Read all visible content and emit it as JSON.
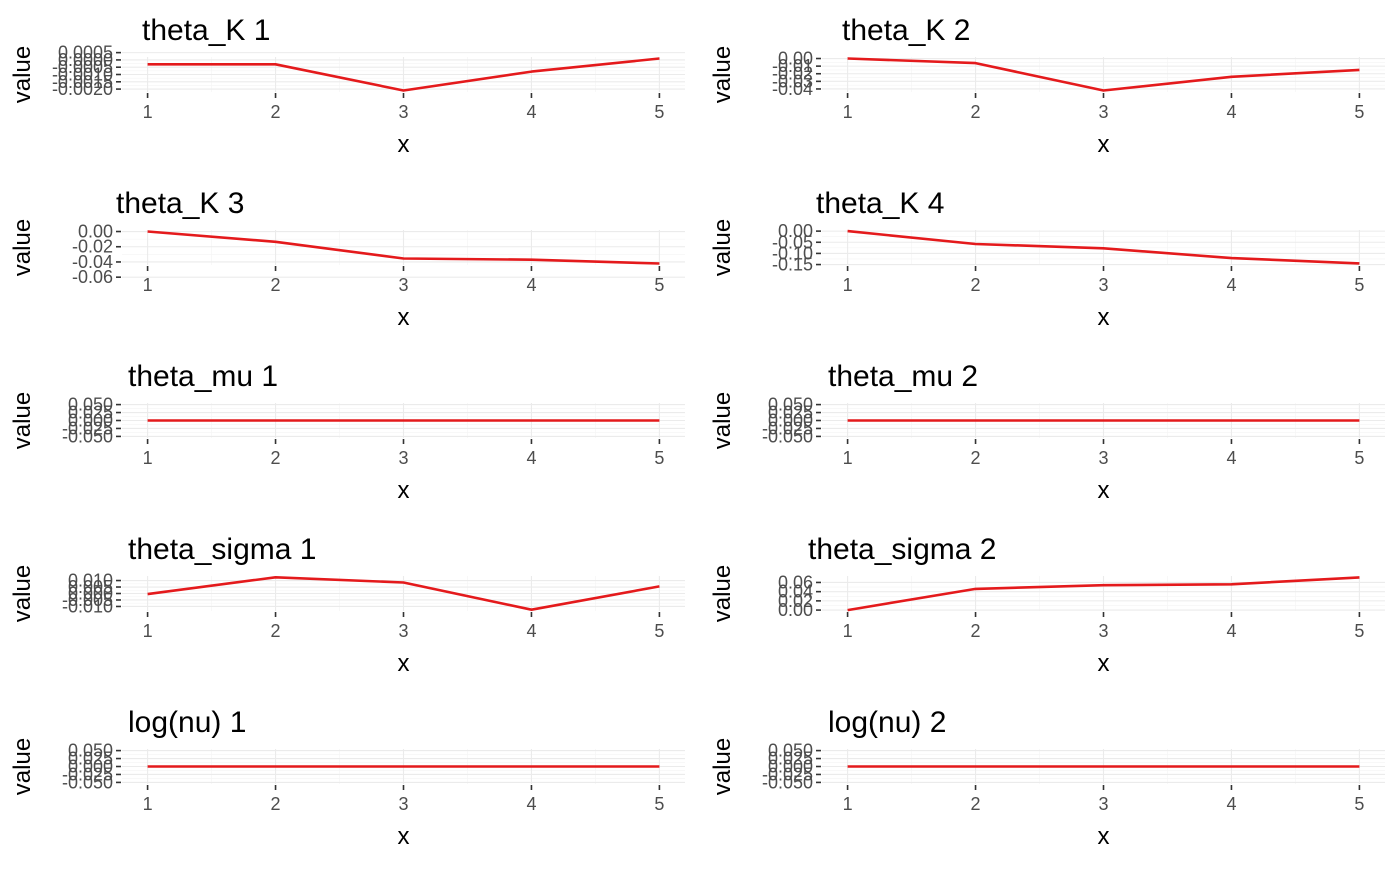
{
  "line_color": "#e41a1c",
  "chart_data": [
    {
      "type": "line",
      "title": "theta_K 1",
      "xlabel": "x",
      "ylabel": "value",
      "x": [
        1,
        2,
        3,
        4,
        5
      ],
      "values": [
        -0.0003,
        -0.0003,
        -0.0021,
        -0.0008,
        0.0001
      ],
      "ylim": [
        -0.0022,
        0.0002
      ],
      "yticks": [
        0.0005,
        0.0,
        -0.0005,
        -0.001,
        -0.0015,
        -0.002
      ],
      "ytick_labels": [
        "0.0005",
        "0.0000",
        "-0.0005",
        "-0.0010",
        "-0.0015",
        "-0.0020"
      ]
    },
    {
      "type": "line",
      "title": "theta_K 2",
      "xlabel": "x",
      "ylabel": "value",
      "x": [
        1,
        2,
        3,
        4,
        5
      ],
      "values": [
        0.0,
        -0.006,
        -0.042,
        -0.024,
        -0.015
      ],
      "ylim": [
        -0.044,
        0.002
      ],
      "yticks": [
        0.0,
        -0.01,
        -0.02,
        -0.03,
        -0.04
      ],
      "ytick_labels": [
        "0.00",
        "-0.01",
        "-0.02",
        "-0.03",
        "-0.04"
      ]
    },
    {
      "type": "line",
      "title": "theta_K 3",
      "xlabel": "x",
      "ylabel": "value",
      "x": [
        1,
        2,
        3,
        4,
        5
      ],
      "values": [
        0.0,
        -0.0135,
        -0.0355,
        -0.037,
        -0.042
      ],
      "ylim": [
        -0.044,
        0.002
      ],
      "yticks": [
        0.0,
        -0.02,
        -0.04,
        -0.06
      ],
      "ytick_labels": [
        "0.00",
        "-0.02",
        "-0.04",
        "-0.06"
      ]
    },
    {
      "type": "line",
      "title": "theta_K 4",
      "xlabel": "x",
      "ylabel": "value",
      "x": [
        1,
        2,
        3,
        4,
        5
      ],
      "values": [
        0.0,
        -0.058,
        -0.077,
        -0.121,
        -0.145
      ],
      "ylim": [
        -0.152,
        0.005
      ],
      "yticks": [
        0.0,
        -0.05,
        -0.1,
        -0.15
      ],
      "ytick_labels": [
        "0.00",
        "-0.05",
        "-0.10",
        "-0.15"
      ]
    },
    {
      "type": "line",
      "title": "theta_mu 1",
      "xlabel": "x",
      "ylabel": "value",
      "x": [
        1,
        2,
        3,
        4,
        5
      ],
      "values": [
        0,
        0,
        0,
        0,
        0
      ],
      "ylim": [
        -0.055,
        0.055
      ],
      "yticks": [
        0.05,
        0.025,
        0.0,
        -0.025,
        -0.05
      ],
      "ytick_labels": [
        "0.050",
        "0.025",
        "0.000",
        "-0.025",
        "-0.050"
      ]
    },
    {
      "type": "line",
      "title": "theta_mu 2",
      "xlabel": "x",
      "ylabel": "value",
      "x": [
        1,
        2,
        3,
        4,
        5
      ],
      "values": [
        0,
        0,
        0,
        0,
        0
      ],
      "ylim": [
        -0.055,
        0.055
      ],
      "yticks": [
        0.05,
        0.025,
        0.0,
        -0.025,
        -0.05
      ],
      "ytick_labels": [
        "0.050",
        "0.025",
        "0.000",
        "-0.025",
        "-0.050"
      ]
    },
    {
      "type": "line",
      "title": "theta_sigma 1",
      "xlabel": "x",
      "ylabel": "value",
      "x": [
        1,
        2,
        3,
        4,
        5
      ],
      "values": [
        -0.0005,
        0.0125,
        0.0085,
        -0.0125,
        0.0055
      ],
      "ylim": [
        -0.0135,
        0.0135
      ],
      "yticks": [
        0.01,
        0.005,
        0.0,
        -0.005,
        -0.01
      ],
      "ytick_labels": [
        "0.010",
        "0.005",
        "0.000",
        "-0.005",
        "-0.010"
      ]
    },
    {
      "type": "line",
      "title": "theta_sigma 2",
      "xlabel": "x",
      "ylabel": "value",
      "x": [
        1,
        2,
        3,
        4,
        5
      ],
      "values": [
        0.0,
        0.046,
        0.054,
        0.056,
        0.071
      ],
      "ylim": [
        -0.002,
        0.074
      ],
      "yticks": [
        0.06,
        0.04,
        0.02,
        0.0
      ],
      "ytick_labels": [
        "0.06",
        "0.04",
        "0.02",
        "0.00"
      ]
    },
    {
      "type": "line",
      "title": "log(nu) 1",
      "xlabel": "x",
      "ylabel": "value",
      "x": [
        1,
        2,
        3,
        4,
        5
      ],
      "values": [
        0,
        0,
        0,
        0,
        0
      ],
      "ylim": [
        -0.055,
        0.055
      ],
      "yticks": [
        0.05,
        0.025,
        0.0,
        -0.025,
        -0.05
      ],
      "ytick_labels": [
        "0.050",
        "0.025",
        "0.000",
        "-0.025",
        "-0.050"
      ]
    },
    {
      "type": "line",
      "title": "log(nu) 2",
      "xlabel": "x",
      "ylabel": "value",
      "x": [
        1,
        2,
        3,
        4,
        5
      ],
      "values": [
        0,
        0,
        0,
        0,
        0
      ],
      "ylim": [
        -0.055,
        0.055
      ],
      "yticks": [
        0.05,
        0.025,
        0.0,
        -0.025,
        -0.05
      ],
      "ytick_labels": [
        "0.050",
        "0.025",
        "0.000",
        "-0.025",
        "-0.050"
      ]
    }
  ]
}
